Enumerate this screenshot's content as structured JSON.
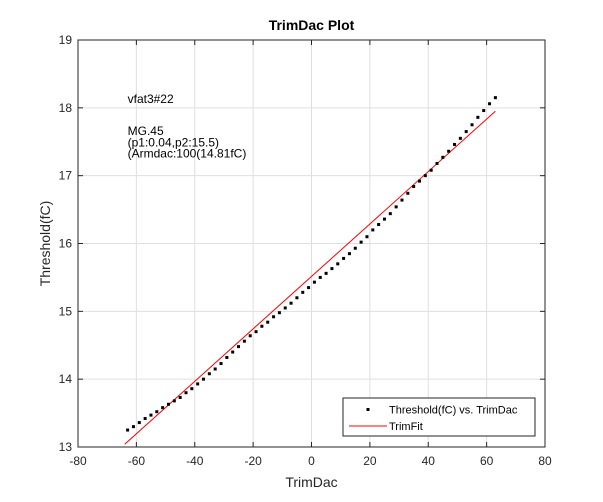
{
  "chart_data": {
    "type": "scatter",
    "title": "TrimDac Plot",
    "xlabel": "TrimDac",
    "ylabel": "Threshold(fC)",
    "xlim": [
      -80,
      80
    ],
    "ylim": [
      13,
      19
    ],
    "xticks": [
      -80,
      -60,
      -40,
      -20,
      0,
      20,
      40,
      60,
      80
    ],
    "yticks": [
      13,
      14,
      15,
      16,
      17,
      18,
      19
    ],
    "grid": true,
    "legend_position": "bottom-right",
    "annotations": [
      {
        "text": "vfat3#22",
        "x": -63,
        "y": 18.07
      },
      {
        "text": "MG.45",
        "x": -63,
        "y": 17.6
      },
      {
        "text": "(p1:0.04,p2:15.5)",
        "x": -63,
        "y": 17.43
      },
      {
        "text": "(Armdac:100(14.81fC)",
        "x": -63,
        "y": 17.27
      }
    ],
    "series": [
      {
        "name": "Threshold(fC) vs. TrimDac",
        "style": "points",
        "color": "#000000",
        "x": [
          -63,
          -61,
          -59,
          -57,
          -55,
          -53,
          -51,
          -49,
          -47,
          -45,
          -43,
          -41,
          -39,
          -37,
          -35,
          -33,
          -31,
          -29,
          -27,
          -25,
          -23,
          -21,
          -19,
          -17,
          -15,
          -13,
          -11,
          -9,
          -7,
          -5,
          -3,
          -1,
          1,
          3,
          5,
          7,
          9,
          11,
          13,
          15,
          17,
          19,
          21,
          23,
          25,
          27,
          29,
          31,
          33,
          35,
          37,
          39,
          41,
          43,
          45,
          47,
          49,
          51,
          53,
          55,
          57,
          59,
          61,
          63
        ],
        "y": [
          13.25,
          13.3,
          13.36,
          13.42,
          13.47,
          13.52,
          13.58,
          13.63,
          13.68,
          13.73,
          13.8,
          13.86,
          13.93,
          14.0,
          14.08,
          14.15,
          14.23,
          14.32,
          14.4,
          14.48,
          14.56,
          14.64,
          14.7,
          14.78,
          14.84,
          14.92,
          14.98,
          15.05,
          15.12,
          15.2,
          15.28,
          15.35,
          15.43,
          15.5,
          15.56,
          15.63,
          15.7,
          15.78,
          15.85,
          15.93,
          16.02,
          16.1,
          16.2,
          16.28,
          16.36,
          16.44,
          16.54,
          16.64,
          16.74,
          16.84,
          16.92,
          17.0,
          17.08,
          17.18,
          17.27,
          17.36,
          17.46,
          17.55,
          17.65,
          17.75,
          17.86,
          17.96,
          18.06,
          18.15
        ]
      },
      {
        "name": "TrimFit",
        "style": "line",
        "color": "#ff0000",
        "x": [
          -64,
          63
        ],
        "y": [
          13.04,
          17.95
        ]
      }
    ]
  }
}
